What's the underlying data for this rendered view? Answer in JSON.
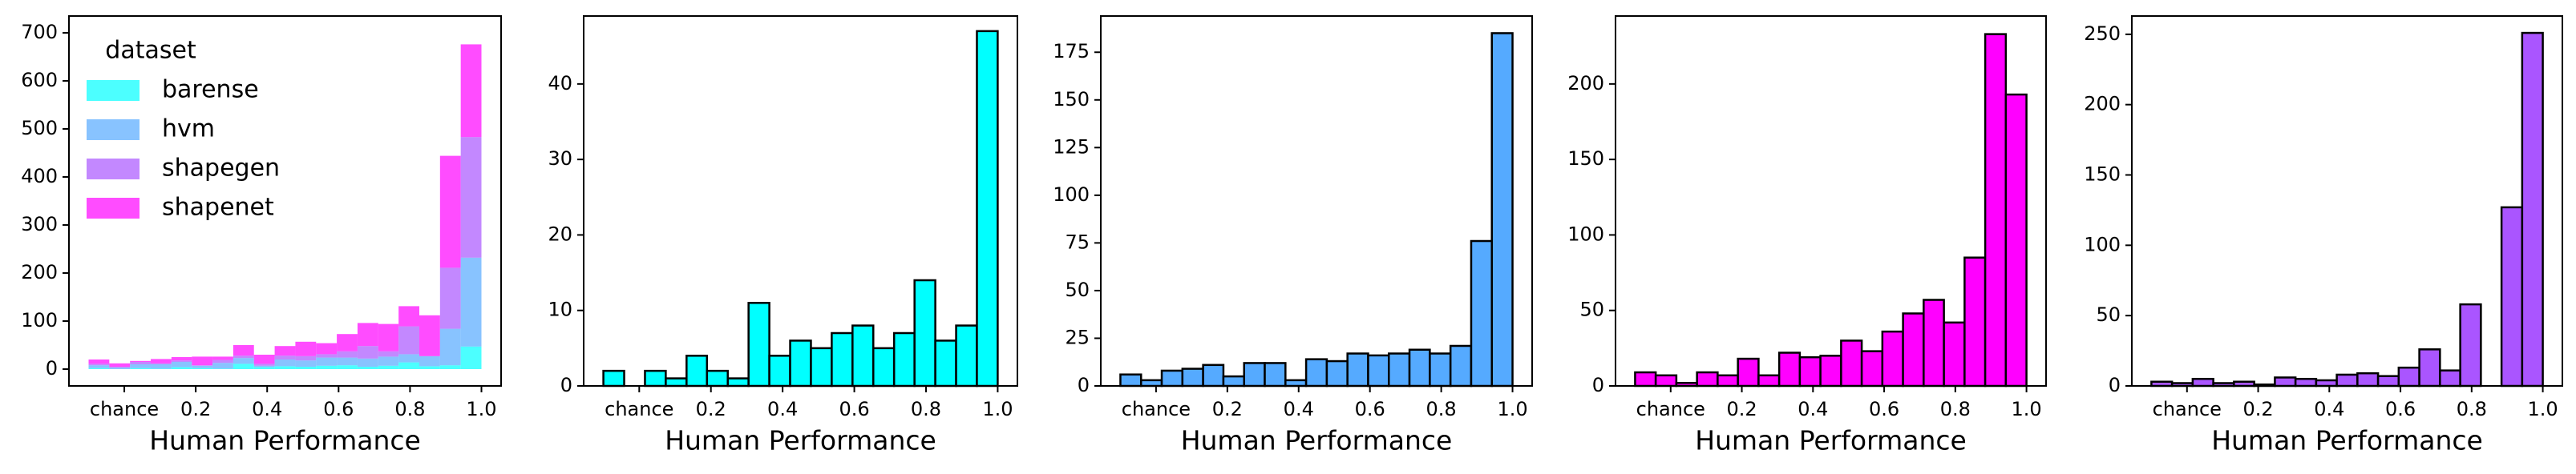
{
  "chart_data": [
    {
      "type": "stacked_histogram",
      "legend_title": "dataset",
      "legend": "upper left",
      "x_label": "Human Performance",
      "bins": [
        -0.1,
        -0.042,
        0.016,
        0.074,
        0.132,
        0.189,
        0.247,
        0.305,
        0.363,
        0.421,
        0.479,
        0.537,
        0.595,
        0.653,
        0.711,
        0.768,
        0.826,
        0.884,
        0.942,
        1.0
      ],
      "series": [
        {
          "name": "barense",
          "color": "#00ffff",
          "values": [
            2,
            0,
            2,
            1,
            4,
            2,
            1,
            11,
            4,
            6,
            5,
            7,
            8,
            5,
            7,
            14,
            6,
            8,
            47
          ]
        },
        {
          "name": "hvm",
          "color": "#55aaff",
          "values": [
            6,
            3,
            8,
            9,
            11,
            5,
            12,
            12,
            3,
            14,
            13,
            17,
            16,
            17,
            19,
            17,
            21,
            76,
            185
          ]
        },
        {
          "name": "shapegen",
          "color": "#aa55ff",
          "values": [
            3,
            2,
            5,
            2,
            3,
            1,
            6,
            5,
            4,
            8,
            9,
            7,
            13,
            26,
            11,
            58,
            0,
            127,
            251
          ]
        },
        {
          "name": "shapenet",
          "color": "#ff00ff",
          "values": [
            9,
            7,
            2,
            9,
            7,
            18,
            7,
            22,
            19,
            20,
            30,
            23,
            36,
            48,
            57,
            42,
            85,
            233,
            193
          ]
        }
      ],
      "xlim": [
        -0.155,
        1.055
      ],
      "xticks": [
        {
          "value": 0,
          "label": "chance"
        },
        0.2,
        0.4,
        0.6,
        0.8,
        {
          "value": 1,
          "label": "1.0"
        }
      ],
      "ylim": [
        -35,
        735
      ],
      "yticks": [
        0,
        100,
        200,
        300,
        400,
        500,
        600,
        700
      ]
    },
    {
      "type": "histogram",
      "x_label": "Human Performance",
      "bins": [
        -0.1,
        -0.042,
        0.016,
        0.074,
        0.132,
        0.189,
        0.247,
        0.305,
        0.363,
        0.421,
        0.479,
        0.537,
        0.595,
        0.653,
        0.711,
        0.768,
        0.826,
        0.884,
        0.942,
        1.0
      ],
      "series": [
        {
          "name": "barense",
          "color": "#00ffff",
          "values": [
            2,
            0,
            2,
            1,
            4,
            2,
            1,
            11,
            4,
            6,
            5,
            7,
            8,
            5,
            7,
            14,
            6,
            8,
            47
          ]
        }
      ],
      "xlim": [
        -0.155,
        1.055
      ],
      "xticks": [
        {
          "value": 0,
          "label": "chance"
        },
        0.2,
        0.4,
        0.6,
        0.8,
        {
          "value": 1,
          "label": "1.0"
        }
      ],
      "ylim": [
        0,
        49
      ],
      "yticks": [
        0,
        10,
        20,
        30,
        40
      ]
    },
    {
      "type": "histogram",
      "x_label": "Human Performance",
      "bins": [
        -0.1,
        -0.042,
        0.016,
        0.074,
        0.132,
        0.189,
        0.247,
        0.305,
        0.363,
        0.421,
        0.479,
        0.537,
        0.595,
        0.653,
        0.711,
        0.768,
        0.826,
        0.884,
        0.942,
        1.0
      ],
      "series": [
        {
          "name": "hvm",
          "color": "#55aaff",
          "values": [
            6,
            3,
            8,
            9,
            11,
            5,
            12,
            12,
            3,
            14,
            13,
            17,
            16,
            17,
            19,
            17,
            21,
            76,
            185
          ]
        }
      ],
      "xlim": [
        -0.155,
        1.055
      ],
      "xticks": [
        {
          "value": 0,
          "label": "chance"
        },
        0.2,
        0.4,
        0.6,
        0.8,
        {
          "value": 1,
          "label": "1.0"
        }
      ],
      "ylim": [
        0,
        194
      ],
      "yticks": [
        0,
        25,
        50,
        75,
        100,
        125,
        150,
        175
      ]
    },
    {
      "type": "histogram",
      "x_label": "Human Performance",
      "bins": [
        -0.1,
        -0.042,
        0.016,
        0.074,
        0.132,
        0.189,
        0.247,
        0.305,
        0.363,
        0.421,
        0.479,
        0.537,
        0.595,
        0.653,
        0.711,
        0.768,
        0.826,
        0.884,
        0.942,
        1.0
      ],
      "series": [
        {
          "name": "shapenet",
          "color": "#ff00ff",
          "values": [
            9,
            7,
            2,
            9,
            7,
            18,
            7,
            22,
            19,
            20,
            30,
            23,
            36,
            48,
            57,
            42,
            85,
            233,
            193
          ]
        }
      ],
      "xlim": [
        -0.155,
        1.055
      ],
      "xticks": [
        {
          "value": 0,
          "label": "chance"
        },
        0.2,
        0.4,
        0.6,
        0.8,
        {
          "value": 1,
          "label": "1.0"
        }
      ],
      "ylim": [
        0,
        245
      ],
      "yticks": [
        0,
        50,
        100,
        150,
        200
      ]
    },
    {
      "type": "histogram",
      "x_label": "Human Performance",
      "bins": [
        -0.1,
        -0.042,
        0.016,
        0.074,
        0.132,
        0.189,
        0.247,
        0.305,
        0.363,
        0.421,
        0.479,
        0.537,
        0.595,
        0.653,
        0.711,
        0.768,
        0.826,
        0.884,
        0.942,
        1.0
      ],
      "series": [
        {
          "name": "shapegen",
          "color": "#aa55ff",
          "values": [
            3,
            2,
            5,
            2,
            3,
            1,
            6,
            5,
            4,
            8,
            9,
            7,
            13,
            26,
            11,
            58,
            0,
            127,
            251
          ]
        }
      ],
      "xlim": [
        -0.155,
        1.055
      ],
      "xticks": [
        {
          "value": 0,
          "label": "chance"
        },
        0.2,
        0.4,
        0.6,
        0.8,
        {
          "value": 1,
          "label": "1.0"
        }
      ],
      "ylim": [
        0,
        263
      ],
      "yticks": [
        0,
        50,
        100,
        150,
        200,
        250
      ]
    }
  ]
}
